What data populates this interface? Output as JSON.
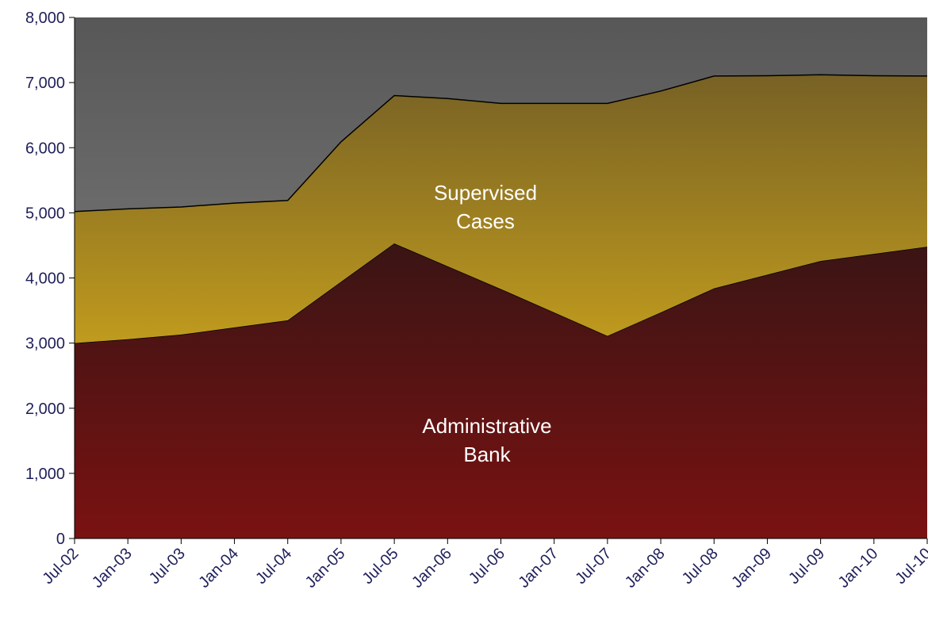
{
  "chart_data": {
    "type": "area",
    "stacked": true,
    "title": "",
    "xlabel": "",
    "ylabel": "",
    "ylim": [
      0,
      8000
    ],
    "yticks": [
      0,
      1000,
      2000,
      3000,
      4000,
      5000,
      6000,
      7000,
      8000
    ],
    "ytick_labels": [
      "0",
      "1,000",
      "2,000",
      "3,000",
      "4,000",
      "5,000",
      "6,000",
      "7,000",
      "8,000"
    ],
    "categories": [
      "Jul-02",
      "Jan-03",
      "Jul-03",
      "Jan-04",
      "Jul-04",
      "Jan-05",
      "Jul-05",
      "Jan-06",
      "Jul-06",
      "Jan-07",
      "Jul-07",
      "Jan-08",
      "Jul-08",
      "Jan-09",
      "Jul-09",
      "Jan-10",
      "Jul-10"
    ],
    "series": [
      {
        "name": "Administrative Bank",
        "label_lines": [
          "Administrative",
          "Bank"
        ],
        "values": [
          3000,
          3060,
          3130,
          3240,
          3350,
          3940,
          4530,
          4180,
          3830,
          3470,
          3110,
          3470,
          3840,
          4050,
          4260,
          4370,
          4480
        ],
        "color_top": "#3a1414",
        "color_bottom": "#7a1212"
      },
      {
        "name": "Supervised Cases",
        "label_lines": [
          "Supervised",
          "Cases"
        ],
        "values": [
          2020,
          2000,
          1960,
          1910,
          1840,
          2150,
          2270,
          2575,
          2850,
          3210,
          3570,
          3400,
          3260,
          3055,
          2860,
          2735,
          2620
        ],
        "color_top": "#776125",
        "color_bottom": "#f5c518"
      }
    ],
    "background": {
      "color_top": "#575757",
      "color_bottom": "#8c8c8c"
    },
    "grid": false,
    "legend": "none"
  }
}
